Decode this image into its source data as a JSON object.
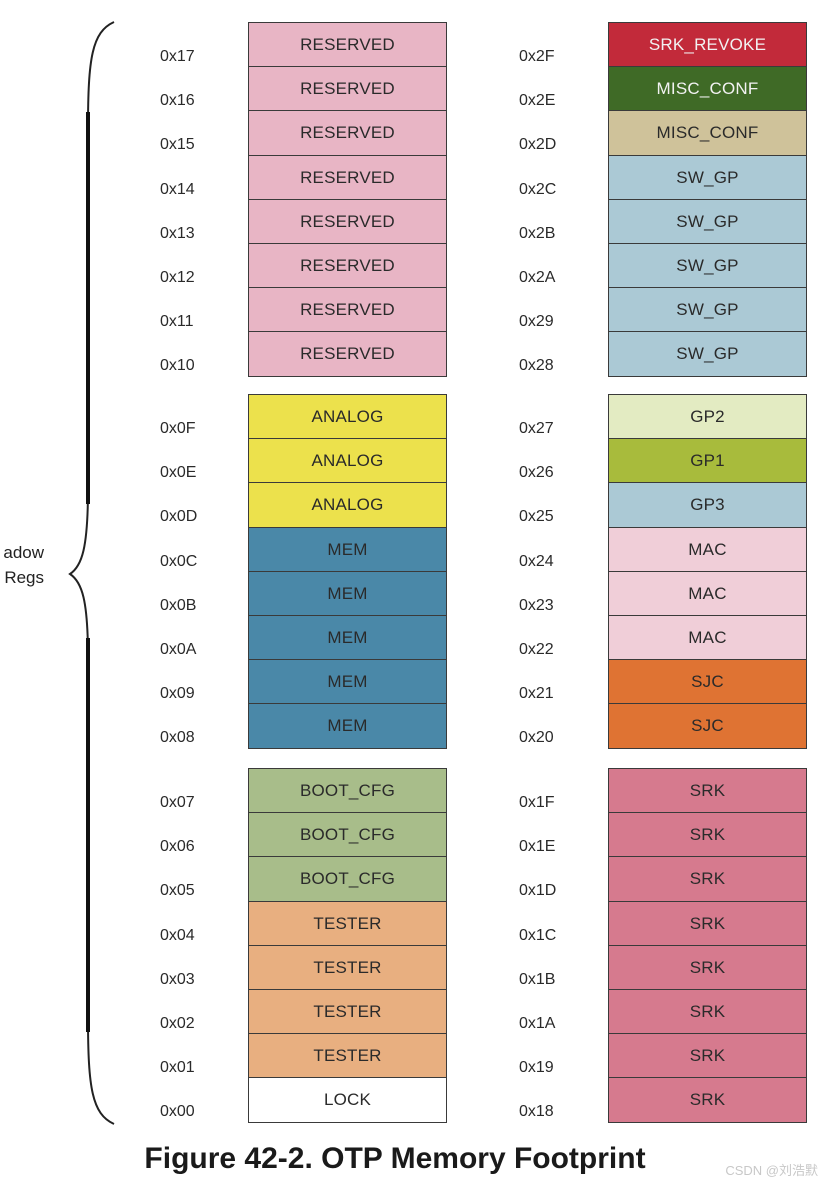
{
  "side_label": [
    "adow",
    "Regs"
  ],
  "caption": "Figure 42-2. OTP Memory Footprint",
  "watermark": "CSDN @刘浩默",
  "colors": {
    "reserved": "#e8b5c5",
    "analog": "#ece14c",
    "mem": "#4a88a8",
    "boot_cfg": "#a8bd8a",
    "tester": "#e8af80",
    "lock": "#ffffff",
    "srk_revoke": "#c22a3a",
    "misc_conf_1": "#3f6a26",
    "misc_conf_2": "#cfc29a",
    "sw_gp": "#abc9d5",
    "gp2": "#e3ebc2",
    "gp1": "#a8bb3c",
    "gp3": "#abc9d5",
    "mac": "#f0ced8",
    "sjc": "#df7333",
    "srk": "#d67a8e"
  },
  "left_groups": [
    {
      "cells": [
        {
          "addr": "0x17",
          "label": "RESERVED",
          "color": "reserved"
        },
        {
          "addr": "0x16",
          "label": "RESERVED",
          "color": "reserved"
        },
        {
          "addr": "0x15",
          "label": "RESERVED",
          "color": "reserved"
        },
        {
          "addr": "0x14",
          "label": "RESERVED",
          "color": "reserved"
        },
        {
          "addr": "0x13",
          "label": "RESERVED",
          "color": "reserved"
        },
        {
          "addr": "0x12",
          "label": "RESERVED",
          "color": "reserved"
        },
        {
          "addr": "0x11",
          "label": "RESERVED",
          "color": "reserved"
        },
        {
          "addr": "0x10",
          "label": "RESERVED",
          "color": "reserved"
        }
      ]
    },
    {
      "cells": [
        {
          "addr": "0x0F",
          "label": "ANALOG",
          "color": "analog"
        },
        {
          "addr": "0x0E",
          "label": "ANALOG",
          "color": "analog"
        },
        {
          "addr": "0x0D",
          "label": "ANALOG",
          "color": "analog"
        },
        {
          "addr": "0x0C",
          "label": "MEM",
          "color": "mem"
        },
        {
          "addr": "0x0B",
          "label": "MEM",
          "color": "mem"
        },
        {
          "addr": "0x0A",
          "label": "MEM",
          "color": "mem"
        },
        {
          "addr": "0x09",
          "label": "MEM",
          "color": "mem"
        },
        {
          "addr": "0x08",
          "label": "MEM",
          "color": "mem"
        }
      ]
    },
    {
      "cells": [
        {
          "addr": "0x07",
          "label": "BOOT_CFG",
          "color": "boot_cfg"
        },
        {
          "addr": "0x06",
          "label": "BOOT_CFG",
          "color": "boot_cfg"
        },
        {
          "addr": "0x05",
          "label": "BOOT_CFG",
          "color": "boot_cfg"
        },
        {
          "addr": "0x04",
          "label": "TESTER",
          "color": "tester"
        },
        {
          "addr": "0x03",
          "label": "TESTER",
          "color": "tester"
        },
        {
          "addr": "0x02",
          "label": "TESTER",
          "color": "tester"
        },
        {
          "addr": "0x01",
          "label": "TESTER",
          "color": "tester"
        },
        {
          "addr": "0x00",
          "label": "LOCK",
          "color": "lock"
        }
      ]
    }
  ],
  "right_groups": [
    {
      "cells": [
        {
          "addr": "0x2F",
          "label": "SRK_REVOKE",
          "color": "srk_revoke"
        },
        {
          "addr": "0x2E",
          "label": "MISC_CONF",
          "color": "misc_conf_1"
        },
        {
          "addr": "0x2D",
          "label": "MISC_CONF",
          "color": "misc_conf_2"
        },
        {
          "addr": "0x2C",
          "label": "SW_GP",
          "color": "sw_gp"
        },
        {
          "addr": "0x2B",
          "label": "SW_GP",
          "color": "sw_gp"
        },
        {
          "addr": "0x2A",
          "label": "SW_GP",
          "color": "sw_gp"
        },
        {
          "addr": "0x29",
          "label": "SW_GP",
          "color": "sw_gp"
        },
        {
          "addr": "0x28",
          "label": "SW_GP",
          "color": "sw_gp"
        }
      ]
    },
    {
      "cells": [
        {
          "addr": "0x27",
          "label": "GP2",
          "color": "gp2"
        },
        {
          "addr": "0x26",
          "label": "GP1",
          "color": "gp1"
        },
        {
          "addr": "0x25",
          "label": "GP3",
          "color": "gp3"
        },
        {
          "addr": "0x24",
          "label": "MAC",
          "color": "mac"
        },
        {
          "addr": "0x23",
          "label": "MAC",
          "color": "mac"
        },
        {
          "addr": "0x22",
          "label": "MAC",
          "color": "mac"
        },
        {
          "addr": "0x21",
          "label": "SJC",
          "color": "sjc"
        },
        {
          "addr": "0x20",
          "label": "SJC",
          "color": "sjc"
        }
      ]
    },
    {
      "cells": [
        {
          "addr": "0x1F",
          "label": "SRK",
          "color": "srk"
        },
        {
          "addr": "0x1E",
          "label": "SRK",
          "color": "srk"
        },
        {
          "addr": "0x1D",
          "label": "SRK",
          "color": "srk"
        },
        {
          "addr": "0x1C",
          "label": "SRK",
          "color": "srk"
        },
        {
          "addr": "0x1B",
          "label": "SRK",
          "color": "srk"
        },
        {
          "addr": "0x1A",
          "label": "SRK",
          "color": "srk"
        },
        {
          "addr": "0x19",
          "label": "SRK",
          "color": "srk"
        },
        {
          "addr": "0x18",
          "label": "SRK",
          "color": "srk"
        }
      ]
    }
  ]
}
